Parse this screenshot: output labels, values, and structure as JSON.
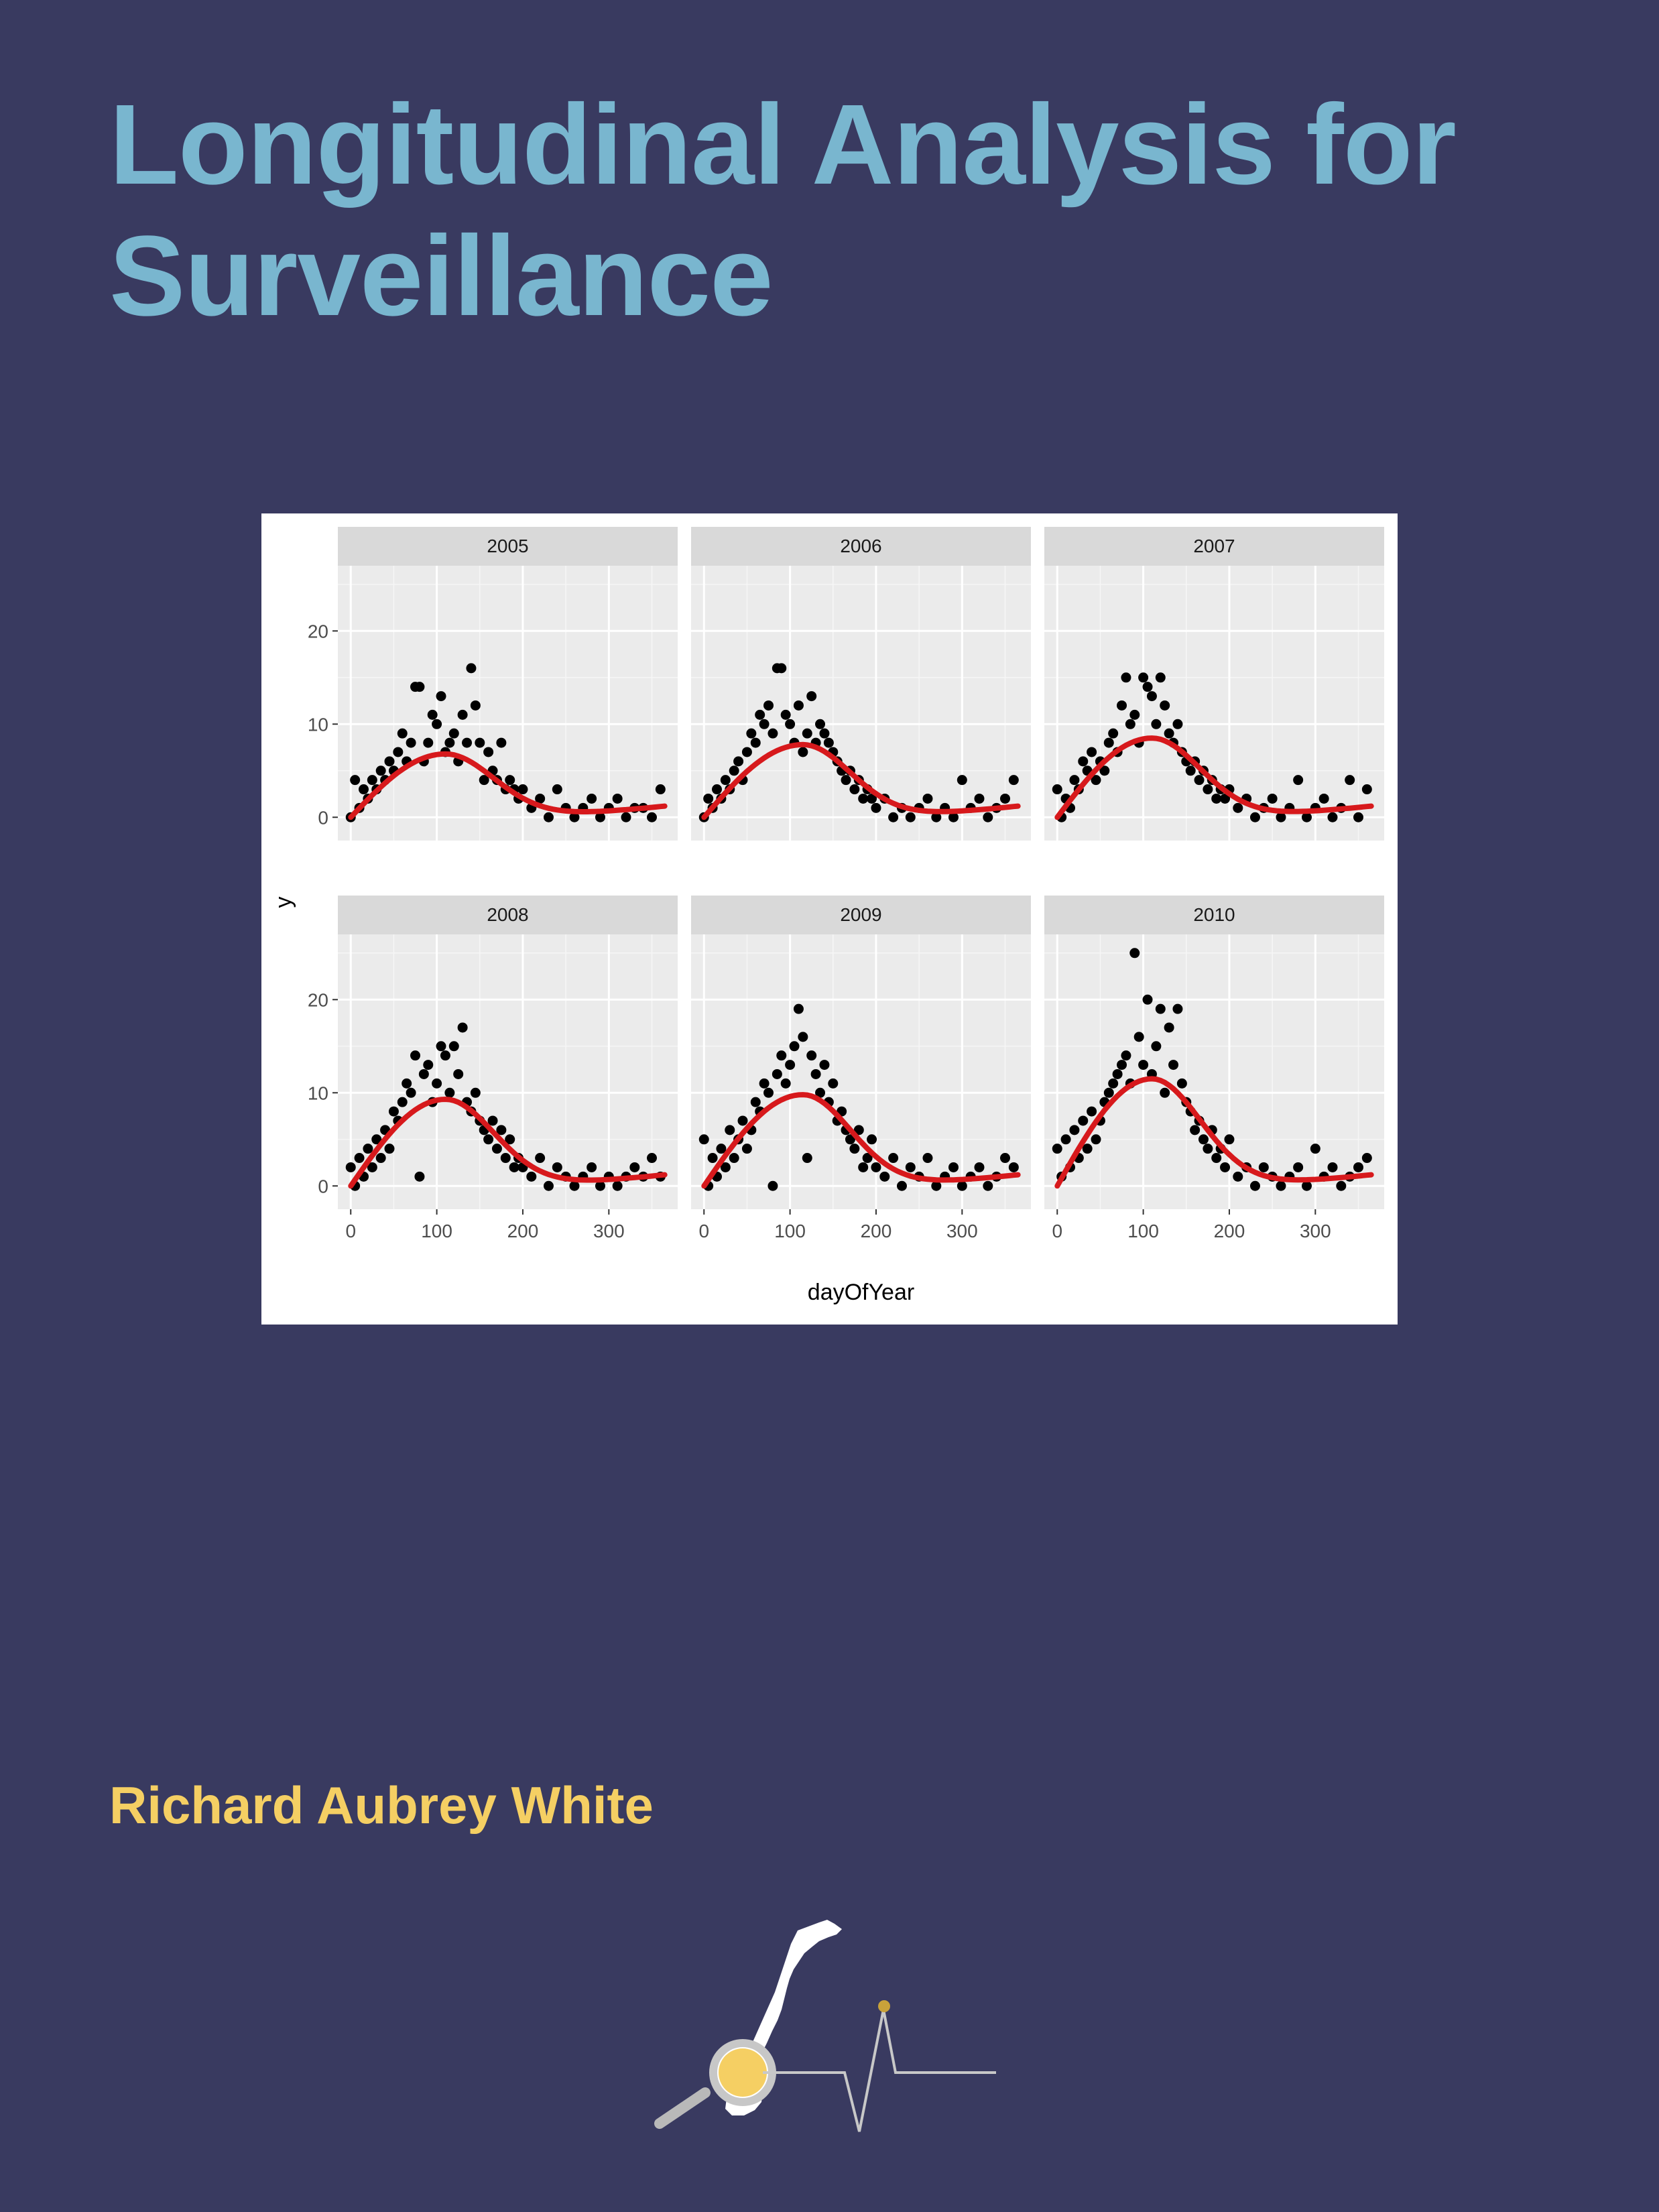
{
  "cover": {
    "title": "Longitudinal Analysis for Surveillance",
    "author": "Richard Aubrey White",
    "colors": {
      "background": "#393a60",
      "title": "#79b6cf",
      "author": "#f5cf63",
      "curve": "#d7191c",
      "points": "#000000",
      "panel": "#ebebeb",
      "strip": "#d9d9d9"
    },
    "logo_icons": [
      "norway-map-icon",
      "magnifier-icon",
      "heartbeat-line-icon"
    ]
  },
  "chart_data": {
    "type": "scatter",
    "facet_by": "year",
    "xlabel": "dayOfYear",
    "ylabel": "y",
    "xlim": [
      -15,
      380
    ],
    "ylim": [
      -2.5,
      27
    ],
    "x_ticks": [
      0,
      100,
      200,
      300
    ],
    "y_ticks": [
      0,
      10,
      20
    ],
    "grid": true,
    "legend": "none",
    "panels": [
      {
        "label": "2005",
        "peak": 6.8,
        "peak_day": 110,
        "points_x": [
          0,
          5,
          10,
          15,
          20,
          25,
          30,
          35,
          40,
          45,
          50,
          55,
          60,
          65,
          70,
          75,
          80,
          85,
          90,
          95,
          100,
          105,
          110,
          115,
          120,
          125,
          130,
          135,
          140,
          145,
          150,
          155,
          160,
          165,
          170,
          175,
          180,
          185,
          190,
          195,
          200,
          210,
          220,
          230,
          240,
          250,
          260,
          270,
          280,
          290,
          300,
          310,
          320,
          330,
          340,
          350,
          360
        ],
        "points_y": [
          0,
          4,
          1,
          3,
          2,
          4,
          3,
          5,
          4,
          6,
          5,
          7,
          9,
          6,
          8,
          14,
          14,
          6,
          8,
          11,
          10,
          13,
          7,
          8,
          9,
          6,
          11,
          8,
          16,
          12,
          8,
          4,
          7,
          5,
          4,
          8,
          3,
          4,
          3,
          2,
          3,
          1,
          2,
          0,
          3,
          1,
          0,
          1,
          2,
          0,
          1,
          2,
          0,
          1,
          1,
          0,
          3
        ]
      },
      {
        "label": "2006",
        "peak": 7.8,
        "peak_day": 115,
        "points_x": [
          0,
          5,
          10,
          15,
          20,
          25,
          30,
          35,
          40,
          45,
          50,
          55,
          60,
          65,
          70,
          75,
          80,
          85,
          90,
          95,
          100,
          105,
          110,
          115,
          120,
          125,
          130,
          135,
          140,
          145,
          150,
          155,
          160,
          165,
          170,
          175,
          180,
          185,
          190,
          195,
          200,
          210,
          220,
          230,
          240,
          250,
          260,
          270,
          280,
          290,
          300,
          310,
          320,
          330,
          340,
          350,
          360
        ],
        "points_y": [
          0,
          2,
          1,
          3,
          2,
          4,
          3,
          5,
          6,
          4,
          7,
          9,
          8,
          11,
          10,
          12,
          9,
          16,
          16,
          11,
          10,
          8,
          12,
          7,
          9,
          13,
          8,
          10,
          9,
          8,
          7,
          6,
          5,
          4,
          5,
          3,
          4,
          2,
          3,
          2,
          1,
          2,
          0,
          1,
          0,
          1,
          2,
          0,
          1,
          0,
          4,
          1,
          2,
          0,
          1,
          2,
          4
        ]
      },
      {
        "label": "2007",
        "peak": 8.5,
        "peak_day": 110,
        "points_x": [
          0,
          5,
          10,
          15,
          20,
          25,
          30,
          35,
          40,
          45,
          50,
          55,
          60,
          65,
          70,
          75,
          80,
          85,
          90,
          95,
          100,
          105,
          110,
          115,
          120,
          125,
          130,
          135,
          140,
          145,
          150,
          155,
          160,
          165,
          170,
          175,
          180,
          185,
          190,
          195,
          200,
          210,
          220,
          230,
          240,
          250,
          260,
          270,
          280,
          290,
          300,
          310,
          320,
          330,
          340,
          350,
          360
        ],
        "points_y": [
          3,
          0,
          2,
          1,
          4,
          3,
          6,
          5,
          7,
          4,
          6,
          5,
          8,
          9,
          7,
          12,
          15,
          10,
          11,
          8,
          15,
          14,
          13,
          10,
          15,
          12,
          9,
          8,
          10,
          7,
          6,
          5,
          6,
          4,
          5,
          3,
          4,
          2,
          3,
          2,
          3,
          1,
          2,
          0,
          1,
          2,
          0,
          1,
          4,
          0,
          1,
          2,
          0,
          1,
          4,
          0,
          3
        ]
      },
      {
        "label": "2008",
        "peak": 9.3,
        "peak_day": 110,
        "points_x": [
          0,
          5,
          10,
          15,
          20,
          25,
          30,
          35,
          40,
          45,
          50,
          55,
          60,
          65,
          70,
          75,
          80,
          85,
          90,
          95,
          100,
          105,
          110,
          115,
          120,
          125,
          130,
          135,
          140,
          145,
          150,
          155,
          160,
          165,
          170,
          175,
          180,
          185,
          190,
          195,
          200,
          210,
          220,
          230,
          240,
          250,
          260,
          270,
          280,
          290,
          300,
          310,
          320,
          330,
          340,
          350,
          360
        ],
        "points_y": [
          2,
          0,
          3,
          1,
          4,
          2,
          5,
          3,
          6,
          4,
          8,
          7,
          9,
          11,
          10,
          14,
          1,
          12,
          13,
          9,
          11,
          15,
          14,
          10,
          15,
          12,
          17,
          9,
          8,
          10,
          7,
          6,
          5,
          7,
          4,
          6,
          3,
          5,
          2,
          3,
          2,
          1,
          3,
          0,
          2,
          1,
          0,
          1,
          2,
          0,
          1,
          0,
          1,
          2,
          1,
          3,
          1
        ]
      },
      {
        "label": "2009",
        "peak": 9.8,
        "peak_day": 115,
        "points_x": [
          0,
          5,
          10,
          15,
          20,
          25,
          30,
          35,
          40,
          45,
          50,
          55,
          60,
          65,
          70,
          75,
          80,
          85,
          90,
          95,
          100,
          105,
          110,
          115,
          120,
          125,
          130,
          135,
          140,
          145,
          150,
          155,
          160,
          165,
          170,
          175,
          180,
          185,
          190,
          195,
          200,
          210,
          220,
          230,
          240,
          250,
          260,
          270,
          280,
          290,
          300,
          310,
          320,
          330,
          340,
          350,
          360
        ],
        "points_y": [
          5,
          0,
          3,
          1,
          4,
          2,
          6,
          3,
          5,
          7,
          4,
          6,
          9,
          8,
          11,
          10,
          0,
          12,
          14,
          11,
          13,
          15,
          19,
          16,
          3,
          14,
          12,
          10,
          13,
          9,
          11,
          7,
          8,
          6,
          5,
          4,
          6,
          2,
          3,
          5,
          2,
          1,
          3,
          0,
          2,
          1,
          3,
          0,
          1,
          2,
          0,
          1,
          2,
          0,
          1,
          3,
          2
        ]
      },
      {
        "label": "2010",
        "peak": 11.5,
        "peak_day": 110,
        "points_x": [
          0,
          5,
          10,
          15,
          20,
          25,
          30,
          35,
          40,
          45,
          50,
          55,
          60,
          65,
          70,
          75,
          80,
          85,
          90,
          95,
          100,
          105,
          110,
          115,
          120,
          125,
          130,
          135,
          140,
          145,
          150,
          155,
          160,
          165,
          170,
          175,
          180,
          185,
          190,
          195,
          200,
          210,
          220,
          230,
          240,
          250,
          260,
          270,
          280,
          290,
          300,
          310,
          320,
          330,
          340,
          350,
          360
        ],
        "points_y": [
          4,
          1,
          5,
          2,
          6,
          3,
          7,
          4,
          8,
          5,
          7,
          9,
          10,
          11,
          12,
          13,
          14,
          11,
          25,
          16,
          13,
          20,
          12,
          15,
          19,
          10,
          17,
          13,
          19,
          11,
          9,
          8,
          6,
          7,
          5,
          4,
          6,
          3,
          4,
          2,
          5,
          1,
          2,
          0,
          2,
          1,
          0,
          1,
          2,
          0,
          4,
          1,
          2,
          0,
          1,
          2,
          3
        ]
      }
    ]
  }
}
